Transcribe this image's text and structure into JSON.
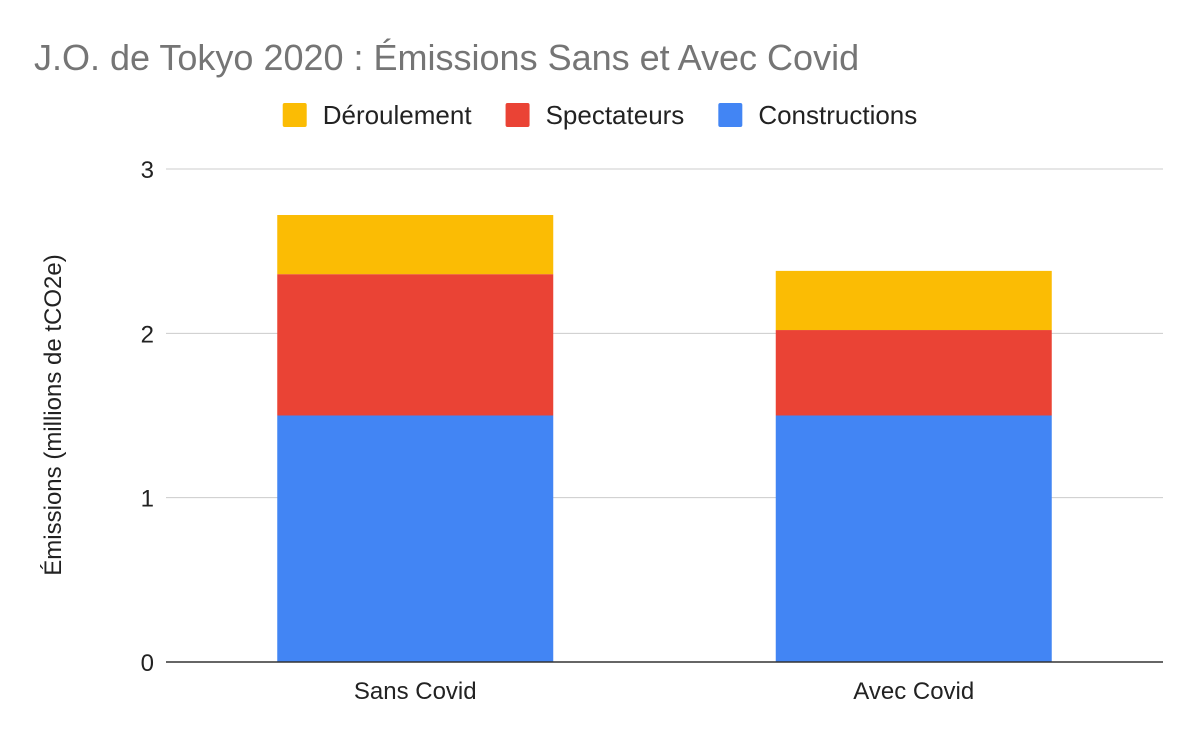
{
  "chart_data": {
    "type": "bar",
    "stacked": true,
    "title": "J.O. de Tokyo 2020 : Émissions Sans et Avec Covid",
    "xlabel": "",
    "ylabel": "Émissions (millions de tCO2e)",
    "ylim": [
      0,
      3
    ],
    "yticks": [
      0,
      1,
      2,
      3
    ],
    "ytick_labels": [
      "0",
      "1",
      "2",
      "3"
    ],
    "grid": true,
    "legend_position": "top-center",
    "categories": [
      "Sans Covid",
      "Avec Covid"
    ],
    "series": [
      {
        "name": "Constructions",
        "color": "#4285F4",
        "values": [
          1.5,
          1.5
        ]
      },
      {
        "name": "Spectateurs",
        "color": "#EA4335",
        "values": [
          0.86,
          0.52
        ]
      },
      {
        "name": "Déroulement",
        "color": "#FBBC04",
        "values": [
          0.36,
          0.36
        ]
      }
    ],
    "legend_order": [
      "Déroulement",
      "Spectateurs",
      "Constructions"
    ]
  }
}
